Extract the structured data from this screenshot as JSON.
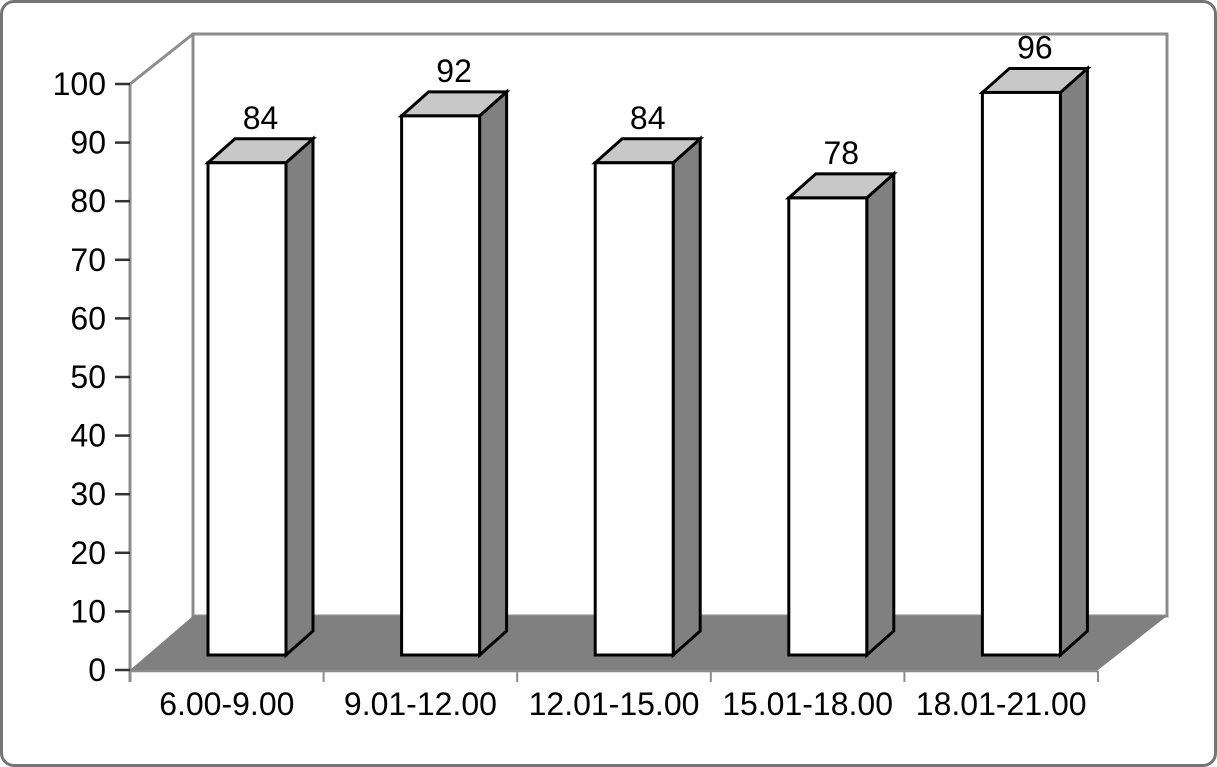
{
  "frame": {
    "background": "#ffffff",
    "border_color": "#757575"
  },
  "chart_data": {
    "type": "bar",
    "style": "3d-column",
    "title": "",
    "subtitle": "",
    "xlabel": "",
    "ylabel": "",
    "categories": [
      "6.00-9.00",
      "9.01-12.00",
      "12.01-15.00",
      "15.01-18.00",
      "18.01-21.00"
    ],
    "values": [
      84,
      92,
      84,
      78,
      96
    ],
    "data_labels": [
      "84",
      "92",
      "84",
      "78",
      "96"
    ],
    "ylim": [
      0,
      100
    ],
    "ytick_step": 10,
    "yticks": [
      0,
      10,
      20,
      30,
      40,
      50,
      60,
      70,
      80,
      90,
      100
    ],
    "grid": false,
    "legend": false,
    "colors": {
      "bar_front": "#ffffff",
      "bar_top": "#c8c8c8",
      "bar_side": "#808080",
      "bar_border": "#000000",
      "floor": "#808080",
      "wall_fill": "#ffffff",
      "wall_border": "#8c8c8c",
      "axis_line": "#8c8c8c",
      "tick_mark": "#333333",
      "text": "#000000"
    }
  }
}
